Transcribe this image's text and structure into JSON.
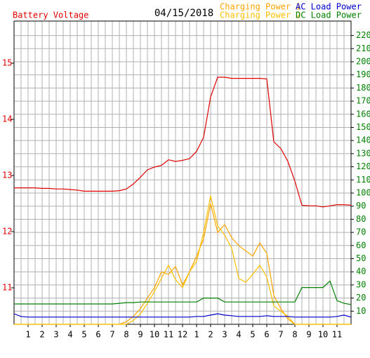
{
  "chart_data": {
    "type": "line",
    "title": "04/15/2018",
    "y_label": "Battery Voltage",
    "x": [
      0,
      0.5,
      1,
      1.5,
      2,
      2.5,
      3,
      3.5,
      4,
      4.5,
      5,
      5.5,
      6,
      6.5,
      7,
      7.5,
      8,
      8.5,
      9,
      9.5,
      10,
      10.5,
      11,
      11.5,
      12,
      12.5,
      13,
      13.5,
      14,
      14.5,
      15,
      15.5,
      16,
      16.5,
      17,
      17.5,
      18,
      18.5,
      19,
      19.5,
      20,
      20.5,
      21,
      21.5,
      22,
      22.5,
      23,
      23.5,
      24
    ],
    "xlim": [
      0,
      24
    ],
    "xticks": [
      1,
      2,
      3,
      4,
      5,
      6,
      7,
      8,
      9,
      10,
      11,
      12,
      {
        "value": 13,
        "label": "1"
      },
      {
        "value": 14,
        "label": "2"
      },
      {
        "value": 15,
        "label": "3"
      },
      {
        "value": 16,
        "label": "4"
      },
      {
        "value": 17,
        "label": "5"
      },
      {
        "value": 18,
        "label": "6"
      },
      {
        "value": 19,
        "label": "7"
      },
      {
        "value": 20,
        "label": "8"
      },
      {
        "value": 21,
        "label": "9"
      },
      {
        "value": 22,
        "label": "10"
      },
      {
        "value": 23,
        "label": "11"
      }
    ],
    "ylim": [
      10.35,
      15.75
    ],
    "yticks": [
      11,
      12,
      13,
      14,
      15
    ],
    "y2lim": [
      0,
      231
    ],
    "y2ticks": [
      10,
      20,
      30,
      40,
      50,
      60,
      70,
      80,
      90,
      100,
      110,
      120,
      130,
      140,
      150,
      160,
      170,
      180,
      190,
      200,
      210,
      220
    ],
    "grid": true,
    "series": [
      {
        "name": "Battery Voltage",
        "color": "#e00000",
        "axis": "y",
        "values": [
          12.78,
          12.78,
          12.78,
          12.78,
          12.77,
          12.77,
          12.76,
          12.76,
          12.75,
          12.74,
          12.72,
          12.72,
          12.72,
          12.72,
          12.72,
          12.73,
          12.76,
          12.85,
          12.97,
          13.1,
          13.15,
          13.18,
          13.28,
          13.25,
          13.27,
          13.3,
          13.43,
          13.68,
          14.4,
          14.75,
          14.75,
          14.73,
          14.73,
          14.73,
          14.73,
          14.73,
          14.72,
          13.6,
          13.48,
          13.25,
          12.9,
          12.47,
          12.46,
          12.46,
          12.44,
          12.46,
          12.48,
          12.48,
          12.47
        ]
      },
      {
        "name": "Charging Power 1",
        "color": "#ffa500",
        "axis": "y2",
        "values": [
          0,
          0,
          0,
          0,
          0,
          0,
          0,
          0,
          0,
          0,
          0,
          0,
          0,
          0,
          0,
          0,
          2,
          6,
          12,
          20,
          28,
          40,
          38,
          44,
          30,
          40,
          52,
          65,
          92,
          70,
          76,
          66,
          60,
          56,
          52,
          62,
          54,
          22,
          12,
          4,
          0,
          0,
          0,
          0,
          0,
          0,
          0,
          0,
          0
        ]
      },
      {
        "name": "Charging Power 2",
        "color": "#ffc000",
        "axis": "y2",
        "values": [
          0,
          0,
          0,
          0,
          0,
          0,
          0,
          0,
          0,
          0,
          0,
          0,
          0,
          0,
          0,
          0,
          0,
          3,
          8,
          16,
          25,
          35,
          45,
          34,
          28,
          40,
          48,
          70,
          98,
          75,
          68,
          58,
          35,
          32,
          38,
          45,
          36,
          14,
          10,
          6,
          0,
          0,
          0,
          0,
          0,
          0,
          0,
          0,
          0
        ]
      },
      {
        "name": "AC Load Power",
        "color": "#0000cc",
        "axis": "y2",
        "values": [
          8,
          6,
          5.5,
          5.5,
          5.5,
          5.5,
          5.5,
          5.5,
          5.5,
          5.5,
          5.5,
          5.5,
          5.5,
          5.5,
          5.5,
          5.5,
          5.5,
          5.5,
          5.5,
          5.5,
          5.5,
          5.5,
          5.5,
          5.5,
          5.5,
          5.5,
          6,
          6,
          7,
          8,
          7,
          6.5,
          6,
          6,
          6,
          6,
          6.5,
          6,
          6,
          6,
          5.5,
          5.5,
          5.5,
          5.5,
          5.5,
          5.5,
          6,
          7,
          5.5
        ]
      },
      {
        "name": "DC Load Power",
        "color": "#008000",
        "axis": "y2",
        "values": [
          15.5,
          15.5,
          15.5,
          15.5,
          15.5,
          15.5,
          15.5,
          15.5,
          15.5,
          15.5,
          15.5,
          15.5,
          15.5,
          15.5,
          15.5,
          16,
          16.5,
          16.5,
          17,
          17,
          17,
          17,
          17,
          17,
          17,
          17,
          17,
          20,
          20,
          20,
          17,
          17,
          17,
          17,
          17,
          17,
          17,
          17,
          17,
          17,
          17,
          28,
          28,
          28,
          28,
          33,
          18,
          16,
          15
        ]
      }
    ]
  }
}
